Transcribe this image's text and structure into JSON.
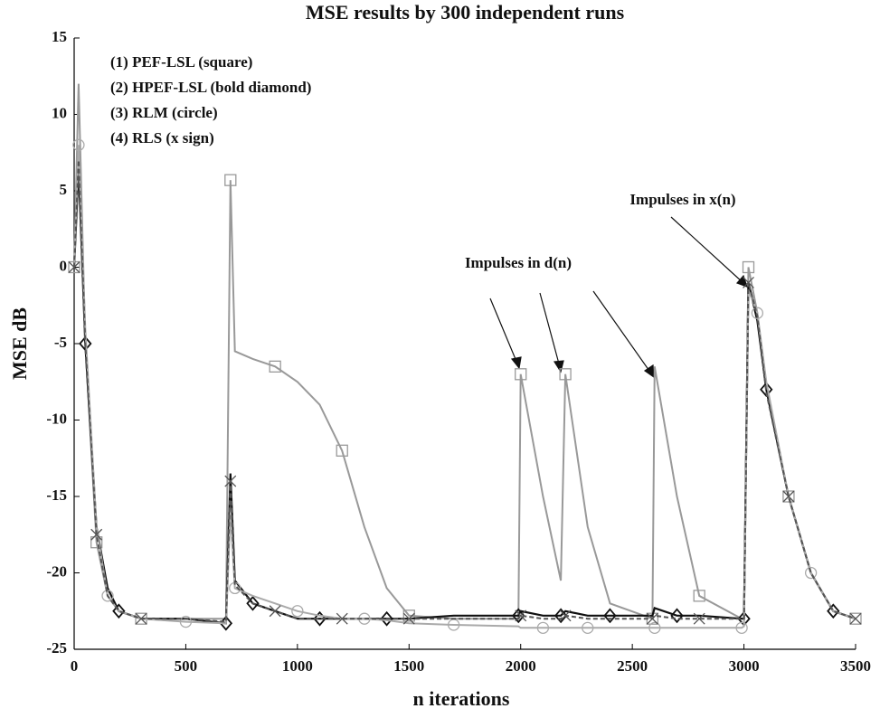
{
  "chart_data": {
    "type": "line",
    "title": "MSE results by 300 independent runs",
    "x_label": "n iterations",
    "y_label": "MSE dB",
    "xlim": [
      0,
      3500
    ],
    "ylim": [
      -25,
      15
    ],
    "xticks": [
      0,
      500,
      1000,
      1500,
      2000,
      2500,
      3000,
      3500
    ],
    "yticks": [
      -25,
      -20,
      -15,
      -10,
      -5,
      0,
      5,
      10,
      15
    ],
    "annotations": [
      "Impulses in d(n)",
      "Impulses in x(n)"
    ],
    "x": [
      0,
      20,
      50,
      100,
      150,
      200,
      300,
      500,
      680,
      700,
      720,
      800,
      900,
      1000,
      1100,
      1200,
      1300,
      1400,
      1500,
      1700,
      1990,
      2000,
      2100,
      2180,
      2200,
      2300,
      2400,
      2590,
      2600,
      2700,
      2800,
      2990,
      3000,
      3020,
      3060,
      3100,
      3200,
      3300,
      3400,
      3500
    ],
    "series": [
      {
        "name": "(1) PEF-LSL (square)",
        "color": "#999999",
        "marker": "square",
        "values": [
          0,
          12,
          -5,
          -18,
          -21.5,
          -22.5,
          -23,
          -23,
          -23,
          5.7,
          -5.5,
          -6,
          -6.5,
          -7.5,
          -9,
          -12,
          -17,
          -21,
          -22.8,
          -23,
          -23,
          -7,
          -15,
          -20.5,
          -7,
          -17,
          -22,
          -23,
          -6.5,
          -15,
          -21.5,
          -23,
          -23,
          0,
          -3,
          -8,
          -15,
          -20,
          -22.5,
          -23
        ]
      },
      {
        "name": "(2) HPEF-LSL (bold diamond)",
        "color": "#111111",
        "marker": "diamond",
        "values": [
          0,
          6.5,
          -5,
          -17,
          -21,
          -22.5,
          -23,
          -23,
          -23.3,
          -13.5,
          -20.5,
          -22,
          -22.5,
          -23,
          -23,
          -23,
          -23,
          -23,
          -23,
          -22.8,
          -22.8,
          -22.5,
          -22.8,
          -22.8,
          -22.5,
          -22.8,
          -22.8,
          -22.8,
          -22.3,
          -22.8,
          -22.8,
          -23,
          -23,
          -1,
          -3.5,
          -8,
          -15,
          -20,
          -22.5,
          -23
        ]
      },
      {
        "name": "(3) RLM (circle)",
        "color": "#aaaaaa",
        "marker": "circle",
        "values": [
          0,
          8,
          -4,
          -17,
          -21.5,
          -22.5,
          -23,
          -23.2,
          -23.3,
          -16,
          -21,
          -21.5,
          -22,
          -22.5,
          -22.8,
          -23,
          -23,
          -23.1,
          -23.3,
          -23.4,
          -23.5,
          -23.6,
          -23.6,
          -23.6,
          -23.6,
          -23.6,
          -23.6,
          -23.6,
          -23.6,
          -23.6,
          -23.6,
          -23.6,
          -23.5,
          -1.5,
          -3,
          -7.5,
          -15,
          -20,
          -22.5,
          -23
        ]
      },
      {
        "name": "(4) RLS (x sign)",
        "color": "#555555",
        "marker": "x",
        "values": [
          0,
          7,
          -5,
          -17.5,
          -21.5,
          -22.5,
          -23,
          -23,
          -23.2,
          -14,
          -20.8,
          -22,
          -22.5,
          -23,
          -23,
          -23,
          -23,
          -23,
          -23,
          -23,
          -23,
          -22.8,
          -23,
          -23,
          -22.8,
          -23,
          -23,
          -23,
          -22.8,
          -23,
          -23,
          -23,
          -23,
          -1,
          -3.2,
          -8.2,
          -15,
          -20,
          -22.5,
          -23
        ]
      }
    ]
  }
}
